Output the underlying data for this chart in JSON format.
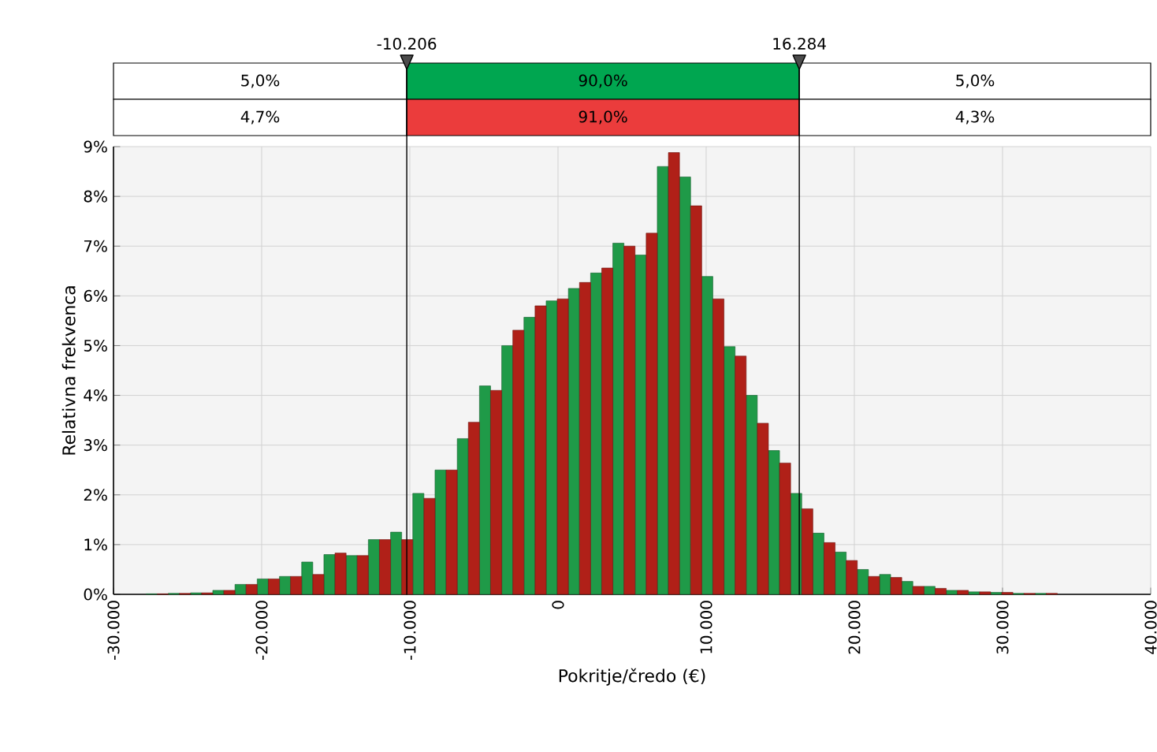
{
  "chart_data": {
    "type": "histogram",
    "xlabel": "Pokritje/čredo (€)",
    "ylabel": "Relativna frekvenca",
    "bins": [
      -27800,
      -26300,
      -24800,
      -23300,
      -21800,
      -20300,
      -18800,
      -17300,
      -15800,
      -14300,
      -12800,
      -11300,
      -9800,
      -8300,
      -6800,
      -5300,
      -3800,
      -2300,
      -800,
      700,
      2200,
      3700,
      5200,
      6700,
      8200,
      9700,
      11200,
      12700,
      14200,
      15700,
      17200,
      18700,
      20200,
      21700,
      23200,
      24700,
      26200,
      27700,
      29200,
      30700,
      32200,
      33700
    ],
    "series": [
      {
        "color": "#1f9a48",
        "values": [
          0.01,
          0.02,
          0.03,
          0.08,
          0.2,
          0.31,
          0.36,
          0.65,
          0.8,
          0.78,
          1.1,
          1.25,
          2.03,
          2.5,
          3.13,
          4.19,
          5.0,
          5.57,
          5.9,
          6.15,
          6.46,
          7.06,
          6.82,
          8.6,
          8.39,
          6.39,
          4.98,
          4.0,
          2.89,
          2.03,
          1.23,
          0.85,
          0.5,
          0.4,
          0.26,
          0.16,
          0.08,
          0.05,
          0.04,
          0.02,
          0.02
        ]
      },
      {
        "color": "#b02018",
        "values": [
          0.01,
          0.02,
          0.03,
          0.08,
          0.2,
          0.31,
          0.36,
          0.4,
          0.83,
          0.78,
          1.1,
          1.1,
          1.93,
          2.5,
          3.46,
          4.1,
          5.31,
          5.8,
          5.94,
          6.27,
          6.56,
          7.0,
          7.26,
          8.88,
          7.81,
          5.94,
          4.79,
          3.44,
          2.64,
          1.72,
          1.04,
          0.68,
          0.36,
          0.34,
          0.16,
          0.12,
          0.08,
          0.05,
          0.04,
          0.02,
          0.02
        ]
      }
    ],
    "xlim": [
      -30000,
      40000
    ],
    "ylim": [
      0,
      9
    ],
    "xticks": [
      {
        "value": -30000,
        "label": "-30.000"
      },
      {
        "value": -20000,
        "label": "-20.000"
      },
      {
        "value": -10000,
        "label": "-10.000"
      },
      {
        "value": 0,
        "label": "0"
      },
      {
        "value": 10000,
        "label": "10.000"
      },
      {
        "value": 20000,
        "label": "20.000"
      },
      {
        "value": 30000,
        "label": "30.000"
      },
      {
        "value": 40000,
        "label": "40.000"
      }
    ],
    "yticks": [
      {
        "value": 0,
        "label": "0%"
      },
      {
        "value": 1,
        "label": "1%"
      },
      {
        "value": 2,
        "label": "2%"
      },
      {
        "value": 3,
        "label": "3%"
      },
      {
        "value": 4,
        "label": "4%"
      },
      {
        "value": 5,
        "label": "5%"
      },
      {
        "value": 6,
        "label": "6%"
      },
      {
        "value": 7,
        "label": "7%"
      },
      {
        "value": 8,
        "label": "8%"
      },
      {
        "value": 9,
        "label": "9%"
      }
    ],
    "ref_lines": [
      {
        "axis": "x",
        "value": -10206,
        "label": "-10.206"
      },
      {
        "axis": "x",
        "value": 16284,
        "label": "16.284"
      }
    ],
    "annotations": [
      "5,0%",
      "90,0%",
      "5,0%",
      "4,7%",
      "91,0%",
      "4,3%"
    ],
    "grid": true
  }
}
